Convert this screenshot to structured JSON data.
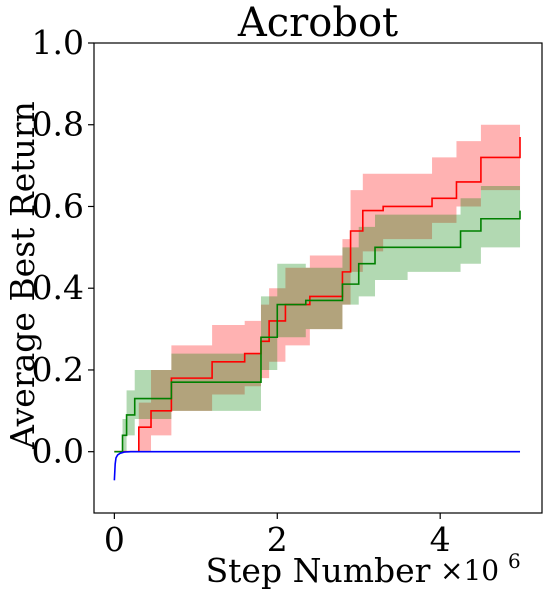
{
  "chart_data": {
    "type": "line",
    "title": "Acrobot",
    "xlabel": "Step Number",
    "ylabel": "Average Best Return",
    "x_multiplier_label": "×10",
    "x_multiplier_exponent": "6",
    "x_scale_factor": 1000000,
    "xlim": [
      -0.25,
      5.25
    ],
    "ylim": [
      -0.15,
      1.0
    ],
    "x_ticks": [
      0,
      2,
      4
    ],
    "y_ticks": [
      0.0,
      0.2,
      0.4,
      0.6,
      0.8,
      1.0
    ],
    "x_tick_labels": [
      "0",
      "2",
      "4"
    ],
    "y_tick_labels": [
      "0.0",
      "0.2",
      "0.4",
      "0.6",
      "0.8",
      "1.0"
    ],
    "grid": false,
    "legend": false,
    "series": [
      {
        "color": "#ff0000",
        "fill_color": "#ff0000",
        "step": true,
        "x": [
          0,
          0.08,
          0.3,
          0.45,
          0.7,
          1.2,
          1.6,
          1.8,
          1.9,
          2.1,
          2.4,
          2.8,
          2.9,
          3.05,
          3.3,
          3.9,
          4.2,
          4.5,
          4.98
        ],
        "y": [
          0.0,
          0.0,
          0.06,
          0.1,
          0.18,
          0.22,
          0.24,
          0.27,
          0.32,
          0.36,
          0.38,
          0.44,
          0.54,
          0.59,
          0.6,
          0.62,
          0.66,
          0.72,
          0.77
        ],
        "lower": [
          0.0,
          0.0,
          0.0,
          0.04,
          0.1,
          0.14,
          0.16,
          0.18,
          0.22,
          0.26,
          0.3,
          0.36,
          0.44,
          0.49,
          0.52,
          0.56,
          0.6,
          0.64,
          0.66
        ],
        "upper": [
          0.0,
          0.0,
          0.12,
          0.2,
          0.26,
          0.31,
          0.32,
          0.36,
          0.4,
          0.45,
          0.48,
          0.52,
          0.64,
          0.68,
          0.68,
          0.72,
          0.76,
          0.8,
          0.85
        ]
      },
      {
        "color": "#008000",
        "fill_color": "#008000",
        "step": true,
        "x": [
          0,
          0.1,
          0.15,
          0.25,
          0.7,
          1.8,
          2.0,
          2.35,
          2.8,
          3.0,
          3.2,
          3.6,
          4.25,
          4.5,
          4.98
        ],
        "y": [
          0.0,
          0.04,
          0.09,
          0.13,
          0.17,
          0.28,
          0.36,
          0.37,
          0.41,
          0.46,
          0.5,
          0.5,
          0.54,
          0.57,
          0.59
        ],
        "lower": [
          0.0,
          0.0,
          0.04,
          0.08,
          0.1,
          0.2,
          0.28,
          0.3,
          0.36,
          0.38,
          0.42,
          0.44,
          0.46,
          0.5,
          0.52
        ],
        "upper": [
          0.0,
          0.08,
          0.15,
          0.2,
          0.24,
          0.38,
          0.46,
          0.45,
          0.5,
          0.55,
          0.58,
          0.58,
          0.62,
          0.65,
          0.65
        ]
      },
      {
        "color": "#0000ff",
        "step": false,
        "x": [
          0.0,
          0.01,
          0.02,
          0.04,
          0.07,
          0.12,
          0.2,
          0.5,
          1.0,
          2.0,
          3.0,
          4.0,
          4.98
        ],
        "y": [
          -0.07,
          -0.03,
          -0.015,
          -0.008,
          -0.004,
          -0.001,
          0.0,
          0.0,
          0.0,
          0.0,
          0.0,
          0.0,
          0.0
        ]
      }
    ]
  }
}
